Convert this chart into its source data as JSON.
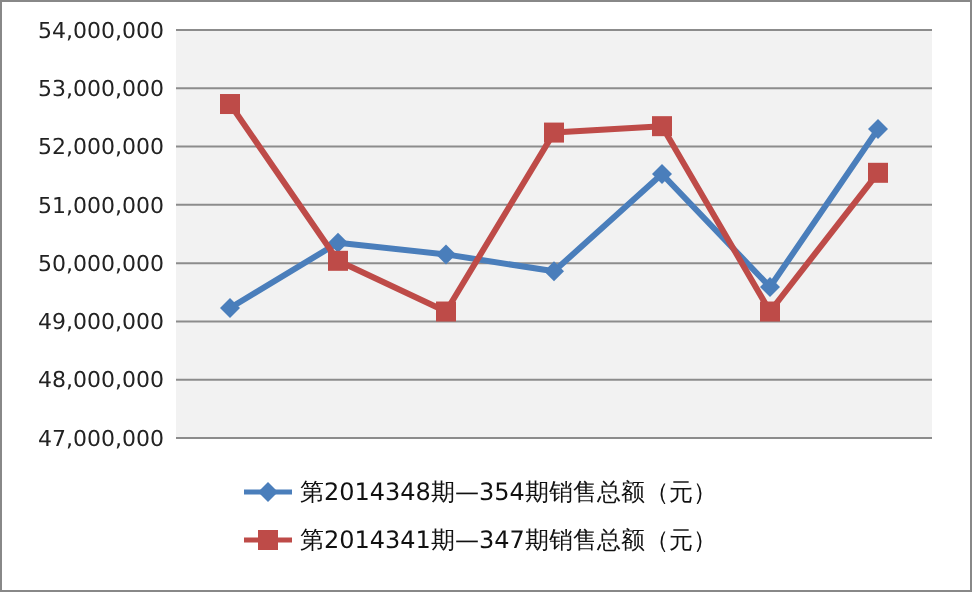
{
  "chart_data": {
    "type": "line",
    "categories": [
      null,
      null,
      null,
      null,
      null,
      null,
      null
    ],
    "series": [
      {
        "name": "第2014348期—354期销售总额（元）",
        "color": "#4a7ebb",
        "marker": "diamond",
        "values": [
          49230000,
          50350000,
          50150000,
          49860000,
          51530000,
          49590000,
          52300000
        ]
      },
      {
        "name": "第2014341期—347期销售总额（元）",
        "color": "#be4b48",
        "marker": "square",
        "values": [
          52730000,
          50040000,
          49170000,
          52240000,
          52350000,
          49170000,
          51550000
        ]
      }
    ],
    "ylim": [
      47000000,
      54000000
    ],
    "yticks": [
      {
        "value": 47000000,
        "label": "47,000,000"
      },
      {
        "value": 48000000,
        "label": "48,000,000"
      },
      {
        "value": 49000000,
        "label": "49,000,000"
      },
      {
        "value": 50000000,
        "label": "50,000,000"
      },
      {
        "value": 51000000,
        "label": "51,000,000"
      },
      {
        "value": 52000000,
        "label": "52,000,000"
      },
      {
        "value": 53000000,
        "label": "53,000,000"
      },
      {
        "value": 54000000,
        "label": "54,000,000"
      }
    ],
    "grid": "y",
    "legend": "bottom",
    "line_style": "solid"
  }
}
